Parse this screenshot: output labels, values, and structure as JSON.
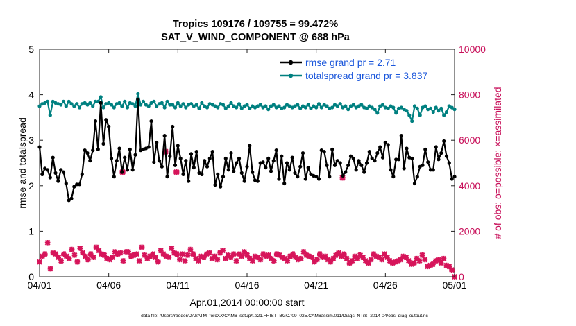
{
  "chart_data": {
    "type": "line",
    "title_line1": "Tropics 109176 / 109755 = 99.472%",
    "title_line2": "SAT_V_WIND_COMPONENT @ 688 hPa",
    "xlabel": "Apr.01,2014 00:00:00 start",
    "ylabel_left": "rmse and totalspread",
    "ylabel_right": "# of obs: o=possible; ×=assimilated",
    "footer": "data file: /Users/raeder/DAI/ATM_forcXX/CAM6_setup/f.e21.FHIST_BGC.f09_025.CAM6assim.011/Diags_NTrS_2014-04/obs_diag_output.nc",
    "x_tick_labels": [
      "04/01",
      "04/06",
      "04/11",
      "04/16",
      "04/21",
      "04/26",
      "05/01"
    ],
    "x_ticks_days": [
      0,
      5,
      10,
      15,
      20,
      25,
      30
    ],
    "xlim_days": [
      0,
      30
    ],
    "ylim_left": [
      0,
      5
    ],
    "y_ticks_left": [
      "0",
      "1",
      "2",
      "3",
      "4",
      "5"
    ],
    "ylim_right": [
      0,
      10000
    ],
    "y_ticks_right": [
      "0",
      "2000",
      "4000",
      "6000",
      "8000",
      "10000"
    ],
    "colors": {
      "rmse": "#000000",
      "spread": "#008080",
      "obs": "#d6145a",
      "legend_text": "#1a56db",
      "right_axis": "#c8105a"
    },
    "legend": [
      {
        "label": "rmse grand pr = 2.71",
        "series": "rmse"
      },
      {
        "label": "totalspread grand pr = 3.837",
        "series": "spread"
      }
    ],
    "series": [
      {
        "name": "rmse",
        "values": [
          2.85,
          2.25,
          2.38,
          2.35,
          2.18,
          2.62,
          2.28,
          2.1,
          2.35,
          2.3,
          2.05,
          1.68,
          1.72,
          1.98,
          2.03,
          2.03,
          2.25,
          2.78,
          2.72,
          2.55,
          2.78,
          3.42,
          2.8,
          3.82,
          2.92,
          3.45,
          3.3,
          2.6,
          2.2,
          2.55,
          2.82,
          2.3,
          2.62,
          2.35,
          2.8,
          2.35,
          2.68,
          3.9,
          2.78,
          2.8,
          2.82,
          2.85,
          3.42,
          2.52,
          2.95,
          2.55,
          2.42,
          3.1,
          2.2,
          2.65,
          3.3,
          2.45,
          2.88,
          2.6,
          2.25,
          2.55,
          2.1,
          2.7,
          2.4,
          2.75,
          2.28,
          2.25,
          2.55,
          2.42,
          2.6,
          2.75,
          2.02,
          2.25,
          1.98,
          2.2,
          2.6,
          2.35,
          2.72,
          2.32,
          2.5,
          2.6,
          2.28,
          2.1,
          2.42,
          2.88,
          2.3,
          2.12,
          2.1,
          2.5,
          2.52,
          2.4,
          2.6,
          2.32,
          2.55,
          2.78,
          2.15,
          2.65,
          2.05,
          2.5,
          2.35,
          2.62,
          2.28,
          2.2,
          2.42,
          2.72,
          2.15,
          2.4,
          2.25,
          2.22,
          2.2,
          2.15,
          2.78,
          2.75,
          2.45,
          2.2,
          2.8,
          2.45,
          2.55,
          2.5,
          2.22,
          2.3,
          2.45,
          2.65,
          2.6,
          2.35,
          2.55,
          2.45,
          2.3,
          2.5,
          2.75,
          2.6,
          2.55,
          2.72,
          2.85,
          2.62,
          2.95,
          2.9,
          2.35,
          2.2,
          2.58,
          2.58,
          3.1,
          2.38,
          2.82,
          2.62,
          2.6,
          2.05,
          2.2,
          2.42,
          2.45,
          2.8,
          2.52,
          2.35,
          2.35,
          2.85,
          2.58,
          2.72,
          2.98,
          2.65,
          2.5,
          2.15,
          2.2
        ]
      },
      {
        "name": "totalspread",
        "values": [
          3.75,
          3.8,
          3.82,
          3.85,
          3.55,
          3.85,
          3.82,
          3.8,
          3.78,
          3.85,
          3.75,
          3.85,
          3.8,
          3.75,
          3.8,
          3.72,
          3.8,
          3.82,
          3.78,
          3.82,
          3.75,
          3.85,
          3.85,
          3.95,
          3.72,
          3.8,
          3.82,
          3.78,
          3.72,
          3.8,
          3.82,
          3.75,
          3.85,
          3.72,
          3.82,
          3.8,
          3.75,
          4.02,
          3.78,
          3.85,
          3.78,
          3.75,
          3.82,
          3.85,
          3.75,
          3.8,
          3.82,
          3.72,
          3.85,
          3.78,
          3.78,
          3.72,
          3.82,
          3.75,
          3.8,
          3.72,
          3.78,
          3.8,
          3.75,
          3.78,
          3.7,
          3.82,
          3.75,
          3.72,
          3.8,
          3.78,
          3.75,
          3.72,
          3.8,
          3.78,
          3.7,
          3.75,
          3.82,
          3.75,
          3.72,
          3.8,
          3.7,
          3.75,
          3.78,
          3.7,
          3.75,
          3.72,
          3.75,
          3.78,
          3.72,
          3.75,
          3.68,
          3.75,
          3.78,
          3.72,
          3.75,
          3.7,
          3.72,
          3.78,
          3.75,
          3.72,
          3.75,
          3.78,
          3.7,
          3.75,
          3.72,
          3.78,
          3.7,
          3.75,
          3.72,
          3.8,
          3.72,
          3.78,
          3.75,
          3.7,
          3.72,
          3.78,
          3.75,
          3.8,
          3.72,
          3.75,
          3.68,
          3.75,
          3.78,
          3.72,
          3.75,
          3.78,
          3.72,
          3.7,
          3.75,
          3.72,
          3.68,
          3.6,
          3.75,
          3.78,
          3.72,
          3.7,
          3.75,
          3.72,
          3.6,
          3.7,
          3.72,
          3.68,
          3.65,
          3.55,
          3.42,
          3.75,
          3.7,
          3.55,
          3.72,
          3.75,
          3.68,
          3.7,
          3.62,
          3.72,
          3.65,
          3.7,
          3.55,
          3.62,
          3.75,
          3.72,
          3.68
        ]
      }
    ],
    "obs_possible": [
      650,
      900,
      1000,
      1500,
      350,
      1050,
      1000,
      850,
      700,
      1000,
      900,
      800,
      1200,
      950,
      650,
      1250,
      1050,
      900,
      750,
      1000,
      850,
      1300,
      1150,
      1000,
      950,
      800,
      750,
      850,
      1100,
      1000,
      1050,
      700,
      1100,
      1100,
      900,
      950,
      1000,
      700,
      1300,
      950,
      800,
      900,
      1000,
      850,
      650,
      1150,
      1000,
      900,
      850,
      1250,
      1050,
      1000,
      750,
      1000,
      700,
      950,
      1200,
      1000,
      800,
      700,
      900,
      850,
      1000,
      1050,
      800,
      900,
      750,
      1050,
      1150,
      800,
      950,
      850,
      1000,
      700,
      1000,
      900,
      1100,
      950,
      800,
      700,
      900,
      850,
      750,
      1000,
      900,
      950,
      800,
      700,
      1000,
      950,
      850,
      800,
      700,
      900,
      1000,
      850,
      750,
      800,
      1100,
      950,
      900,
      850,
      650,
      750,
      1000,
      850,
      900,
      750,
      650,
      800,
      950,
      1050,
      900,
      1000,
      800,
      600,
      700,
      900,
      800,
      950,
      850,
      700,
      600,
      750,
      1000,
      900,
      850,
      750,
      1000,
      850,
      700,
      600,
      650,
      700,
      750,
      900,
      850,
      700,
      550,
      600,
      800,
      700,
      950,
      750,
      450,
      500,
      550,
      700,
      750,
      600,
      800,
      500,
      450,
      300,
      0
    ],
    "obs_assimilated_markers": [
      {
        "day": 6.0,
        "value": 4600
      },
      {
        "day": 9.1,
        "value": 5500
      },
      {
        "day": 9.1,
        "value": 5500
      },
      {
        "day": 9.9,
        "value": 4600
      },
      {
        "day": 21.9,
        "value": 4350
      }
    ]
  }
}
